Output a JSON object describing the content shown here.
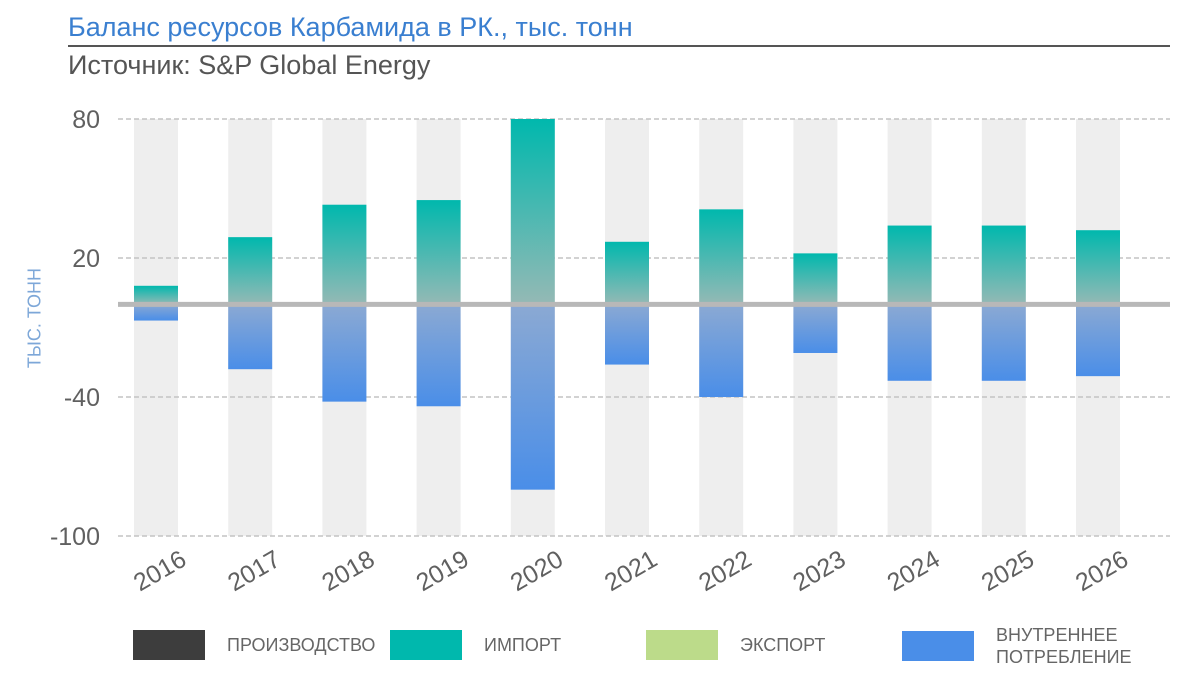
{
  "title": "Баланс ресурсов Карбамида в РК., тыс. тонн",
  "subtitle": "Источник: S&P Global Energy",
  "colors": {
    "production": "#3d3d3d",
    "import": "#00b8ad",
    "export": "#bcdb8a",
    "consumption": "#4a8ee8",
    "axis_line": "#b8b8b8",
    "band": "#eeeeee"
  },
  "legend": [
    {
      "key": "production",
      "label": "ПРОИЗВОДСТВО"
    },
    {
      "key": "import",
      "label": "ИМПОРТ"
    },
    {
      "key": "export",
      "label": "ЭКСПОРТ"
    },
    {
      "key": "consumption",
      "label": "ВНУТРЕННЕЕ ПОТРЕБЛЕНИЕ"
    }
  ],
  "chart_data": {
    "type": "bar",
    "ylabel": "ТЫС. ТОНН",
    "ylim": [
      -100,
      80
    ],
    "yticks": [
      "80",
      "20",
      "-40",
      "-100"
    ],
    "categories": [
      "2016",
      "2017",
      "2018",
      "2019",
      "2020",
      "2021",
      "2022",
      "2023",
      "2024",
      "2025",
      "2026"
    ],
    "series": [
      {
        "name": "ИМПОРТ",
        "values": [
          8,
          29,
          43,
          45,
          81,
          27,
          41,
          22,
          34,
          34,
          32
        ]
      },
      {
        "name": "ВНУТРЕННЕЕ ПОТРЕБЛЕНИЕ",
        "values": [
          -7,
          -28,
          -42,
          -44,
          -80,
          -26,
          -40,
          -21,
          -33,
          -33,
          -31
        ]
      }
    ],
    "grid": true,
    "stacked": "diverging"
  }
}
